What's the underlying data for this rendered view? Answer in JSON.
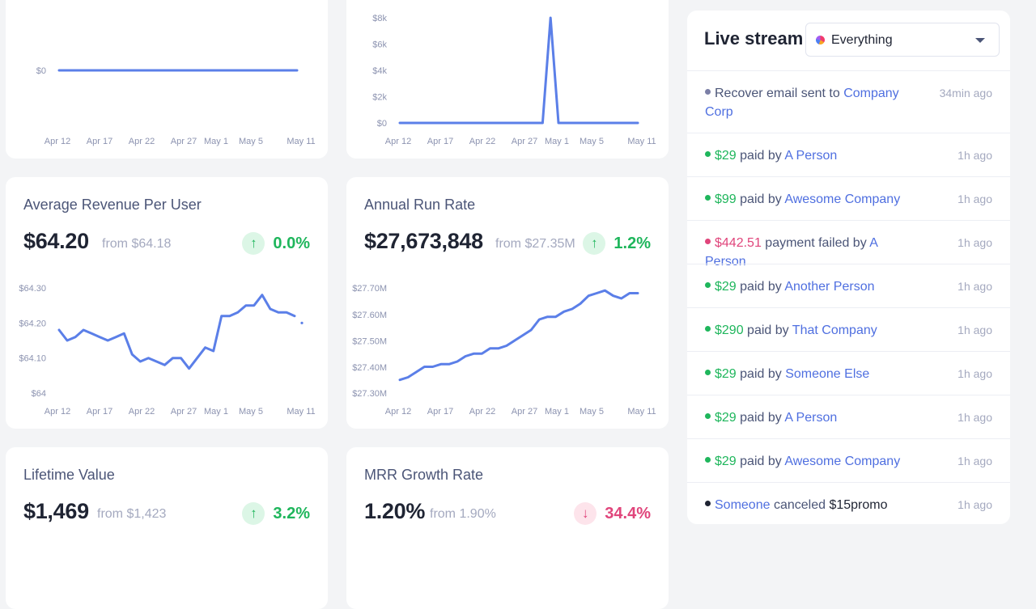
{
  "colors": {
    "line": "#5b7fe8",
    "green": "#1fb65c",
    "red": "#e0457b",
    "muted": "#8c93b0",
    "gray_dot": "#7b7fa6",
    "black_dot": "#1f2433"
  },
  "x_ticks": [
    "Apr 12",
    "Apr 17",
    "Apr 22",
    "Apr 27",
    "May 1",
    "May 5",
    "May 11"
  ],
  "chart_data": [
    {
      "type": "line",
      "title": "",
      "y_ticks": [
        "$0"
      ],
      "ylim": [
        -1,
        1
      ],
      "values": [
        0,
        0,
        0,
        0,
        0,
        0,
        0,
        0,
        0,
        0,
        0,
        0,
        0,
        0,
        0,
        0,
        0,
        0,
        0,
        0,
        0,
        0,
        0,
        0,
        0,
        0,
        0,
        0,
        0,
        0,
        0
      ]
    },
    {
      "type": "line",
      "title": "",
      "y_ticks": [
        "$8k",
        "$6k",
        "$4k",
        "$2k",
        "$0"
      ],
      "ylim": [
        0,
        8000
      ],
      "values": [
        0,
        0,
        0,
        0,
        0,
        0,
        0,
        0,
        0,
        0,
        0,
        0,
        0,
        0,
        0,
        0,
        0,
        0,
        0,
        8000,
        0,
        0,
        0,
        0,
        0,
        0,
        0,
        0,
        0,
        0,
        0
      ]
    },
    {
      "type": "line",
      "title": "Average Revenue Per User",
      "y_ticks": [
        "$64.30",
        "$64.20",
        "$64.10",
        "$64"
      ],
      "ylim": [
        64.0,
        64.3
      ],
      "values": [
        64.18,
        64.15,
        64.16,
        64.18,
        64.17,
        64.16,
        64.15,
        64.16,
        64.17,
        64.11,
        64.09,
        64.1,
        64.09,
        64.08,
        64.1,
        64.1,
        64.07,
        64.1,
        64.13,
        64.12,
        64.22,
        64.22,
        64.23,
        64.25,
        64.25,
        64.28,
        64.24,
        64.23,
        64.23,
        64.22
      ],
      "trailing_dot": 64.2
    },
    {
      "type": "line",
      "title": "Annual Run Rate",
      "y_ticks": [
        "$27.70M",
        "$27.60M",
        "$27.50M",
        "$27.40M",
        "$27.30M"
      ],
      "ylim": [
        27.3,
        27.7
      ],
      "values": [
        27.35,
        27.36,
        27.38,
        27.4,
        27.4,
        27.41,
        27.41,
        27.42,
        27.44,
        27.45,
        27.45,
        27.47,
        27.47,
        27.48,
        27.5,
        27.52,
        27.54,
        27.58,
        27.59,
        27.59,
        27.61,
        27.62,
        27.64,
        27.67,
        27.68,
        27.69,
        27.67,
        27.66,
        27.68,
        27.68
      ]
    }
  ],
  "metrics": {
    "arpu": {
      "title": "Average Revenue Per User",
      "value": "$64.20",
      "from": "from $64.18",
      "change": "0.0%",
      "direction": "up"
    },
    "arr": {
      "title": "Annual Run Rate",
      "value": "$27,673,848",
      "from": "from $27.35M",
      "change": "1.2%",
      "direction": "up"
    },
    "ltv": {
      "title": "Lifetime Value",
      "value": "$1,469",
      "from": "from $1,423",
      "change": "3.2%",
      "direction": "up"
    },
    "mrr_growth": {
      "title": "MRR Growth Rate",
      "value": "1.20%",
      "from": "from 1.90%",
      "change": "34.4%",
      "direction": "down"
    }
  },
  "live_stream": {
    "title": "Live stream",
    "filter": {
      "selected": "Everything"
    },
    "items": [
      {
        "dot": "gray",
        "amount": "",
        "amount_color": "",
        "text_before": "Recover email sent to",
        "link": "Company Corp",
        "time": "34min ago",
        "multiline": true
      },
      {
        "dot": "green",
        "amount": "$29",
        "amount_color": "green",
        "text_before": "paid by",
        "link": "A Person",
        "time": "1h ago"
      },
      {
        "dot": "green",
        "amount": "$99",
        "amount_color": "green",
        "text_before": "paid by",
        "link": "Awesome Company",
        "time": "1h ago"
      },
      {
        "dot": "red",
        "amount": "$442.51",
        "amount_color": "red",
        "text_before": "payment failed by",
        "link": "A Person",
        "time": "1h ago"
      },
      {
        "dot": "green",
        "amount": "$29",
        "amount_color": "green",
        "text_before": "paid by",
        "link": "Another Person",
        "time": "1h ago"
      },
      {
        "dot": "green",
        "amount": "$290",
        "amount_color": "green",
        "text_before": "paid by",
        "link": "That Company",
        "time": "1h ago"
      },
      {
        "dot": "green",
        "amount": "$29",
        "amount_color": "green",
        "text_before": "paid by",
        "link": "Someone Else",
        "time": "1h ago"
      },
      {
        "dot": "green",
        "amount": "$29",
        "amount_color": "green",
        "text_before": "paid by",
        "link": "A Person",
        "time": "1h ago"
      },
      {
        "dot": "green",
        "amount": "$29",
        "amount_color": "green",
        "text_before": "paid by",
        "link": "Awesome Company",
        "time": "1h ago"
      },
      {
        "dot": "black",
        "amount": "",
        "amount_color": "",
        "lead_link": "Someone",
        "text_before": "canceled",
        "tail": "$15promo",
        "link": "",
        "time": "1h ago"
      }
    ]
  }
}
